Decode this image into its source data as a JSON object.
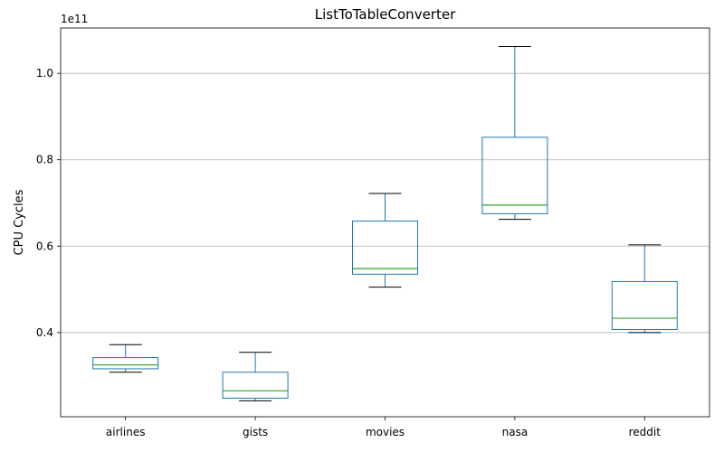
{
  "chart_data": {
    "type": "box",
    "title": "ListToTableConverter",
    "xlabel": "",
    "ylabel": "CPU Cycles",
    "y_scale_offset": "1e11",
    "y_tick_labels": [
      "0.4",
      "0.6",
      "0.8",
      "1.0"
    ],
    "y_ticks": [
      0.4,
      0.6,
      0.8,
      1.0
    ],
    "ylim": [
      0.205,
      1.105
    ],
    "grid": "horizontal",
    "colors": {
      "box": "#1f77b4",
      "median": "#2ca02c",
      "whisker": "#1f77b4",
      "cap": "#000000",
      "grid": "#b0b0b0"
    },
    "categories": [
      "airlines",
      "gists",
      "movies",
      "nasa",
      "reddit"
    ],
    "boxes": [
      {
        "category": "airlines",
        "whisker_low": 0.308,
        "q1": 0.316,
        "median": 0.325,
        "q3": 0.342,
        "whisker_high": 0.372
      },
      {
        "category": "gists",
        "whisker_low": 0.242,
        "q1": 0.248,
        "median": 0.265,
        "q3": 0.308,
        "whisker_high": 0.354
      },
      {
        "category": "movies",
        "whisker_low": 0.505,
        "q1": 0.535,
        "median": 0.548,
        "q3": 0.658,
        "whisker_high": 0.722
      },
      {
        "category": "nasa",
        "whisker_low": 0.662,
        "q1": 0.675,
        "median": 0.695,
        "q3": 0.852,
        "whisker_high": 1.062
      },
      {
        "category": "reddit",
        "whisker_low": 0.4,
        "q1": 0.407,
        "median": 0.433,
        "q3": 0.518,
        "whisker_high": 0.603
      }
    ]
  }
}
